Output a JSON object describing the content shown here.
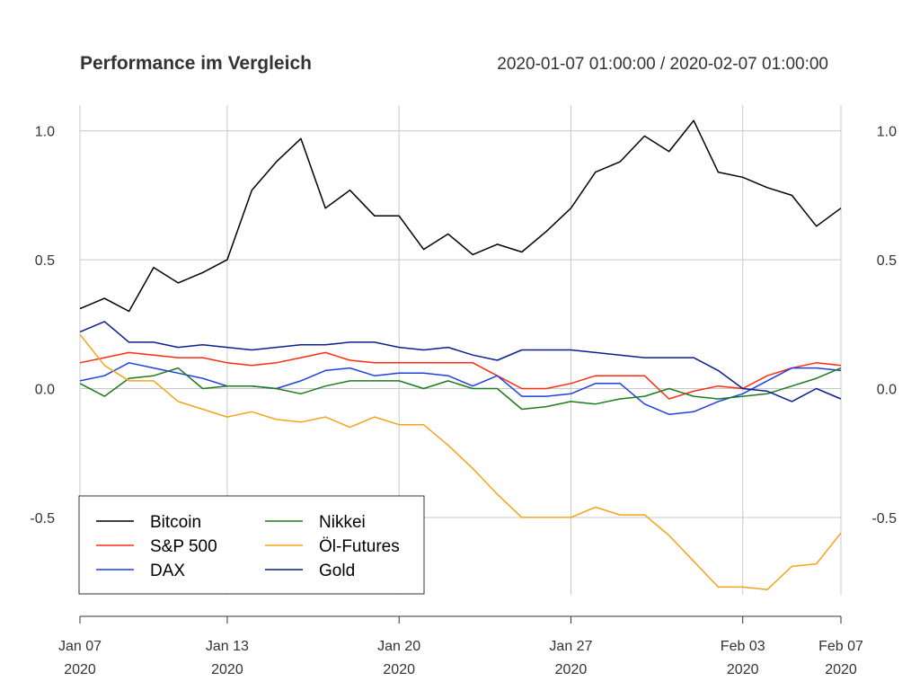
{
  "chart_data": {
    "type": "line",
    "title": "Performance im Vergleich",
    "subtitle": "2020-01-07 01:00:00 / 2020-02-07 01:00:00",
    "x": [
      "2020-01-07",
      "2020-01-08",
      "2020-01-09",
      "2020-01-10",
      "2020-01-11",
      "2020-01-12",
      "2020-01-13",
      "2020-01-14",
      "2020-01-15",
      "2020-01-16",
      "2020-01-17",
      "2020-01-18",
      "2020-01-19",
      "2020-01-20",
      "2020-01-21",
      "2020-01-22",
      "2020-01-23",
      "2020-01-24",
      "2020-01-25",
      "2020-01-26",
      "2020-01-27",
      "2020-01-28",
      "2020-01-29",
      "2020-01-30",
      "2020-01-31",
      "2020-02-01",
      "2020-02-02",
      "2020-02-03",
      "2020-02-04",
      "2020-02-05",
      "2020-02-06",
      "2020-02-07"
    ],
    "x_tick_labels": [
      {
        "date": "2020-01-07",
        "line1": "Jan 07",
        "line2": "2020"
      },
      {
        "date": "2020-01-13",
        "line1": "Jan 13",
        "line2": "2020"
      },
      {
        "date": "2020-01-20",
        "line1": "Jan 20",
        "line2": "2020"
      },
      {
        "date": "2020-01-27",
        "line1": "Jan 27",
        "line2": "2020"
      },
      {
        "date": "2020-02-03",
        "line1": "Feb 03",
        "line2": "2020"
      },
      {
        "date": "2020-02-07",
        "line1": "Feb 07",
        "line2": "2020"
      }
    ],
    "ylim": [
      -0.8,
      1.1
    ],
    "y_ticks": [
      {
        "value": 1.0,
        "label": "1.0"
      },
      {
        "value": 0.5,
        "label": "0.5"
      },
      {
        "value": 0.0,
        "label": "0.0"
      },
      {
        "value": -0.5,
        "label": "-0.5"
      }
    ],
    "grid": true,
    "legend_placement": "bottom-left",
    "series": [
      {
        "name": "Bitcoin",
        "color": "#000000",
        "values": [
          0.31,
          0.35,
          0.3,
          0.47,
          0.41,
          0.45,
          0.5,
          0.77,
          0.88,
          0.97,
          0.7,
          0.77,
          0.67,
          0.67,
          0.54,
          0.6,
          0.52,
          0.56,
          0.53,
          0.61,
          0.7,
          0.84,
          0.88,
          0.98,
          0.92,
          1.04,
          0.84,
          0.82,
          0.78,
          0.75,
          0.63,
          0.7
        ]
      },
      {
        "name": "S&P 500",
        "color": "#ff2a10",
        "values": [
          0.1,
          0.12,
          0.14,
          0.13,
          0.12,
          0.12,
          0.1,
          0.09,
          0.1,
          0.12,
          0.14,
          0.11,
          0.1,
          0.1,
          0.1,
          0.1,
          0.1,
          0.05,
          0.0,
          0.0,
          0.02,
          0.05,
          0.05,
          0.05,
          -0.04,
          -0.01,
          0.01,
          0.0,
          0.05,
          0.08,
          0.1,
          0.09
        ]
      },
      {
        "name": "DAX",
        "color": "#1f3fe0",
        "values": [
          0.03,
          0.05,
          0.1,
          0.08,
          0.06,
          0.04,
          0.01,
          0.01,
          0.0,
          0.03,
          0.07,
          0.08,
          0.05,
          0.06,
          0.06,
          0.05,
          0.01,
          0.05,
          -0.03,
          -0.03,
          -0.02,
          0.02,
          0.02,
          -0.06,
          -0.1,
          -0.09,
          -0.05,
          -0.02,
          0.03,
          0.08,
          0.08,
          0.07
        ]
      },
      {
        "name": "Nikkei",
        "color": "#1e7a1e",
        "values": [
          0.02,
          -0.03,
          0.04,
          0.05,
          0.08,
          0.0,
          0.01,
          0.01,
          0.0,
          -0.02,
          0.01,
          0.03,
          0.03,
          0.03,
          0.0,
          0.03,
          0.0,
          0.0,
          -0.08,
          -0.07,
          -0.05,
          -0.06,
          -0.04,
          -0.03,
          0.0,
          -0.03,
          -0.04,
          -0.03,
          -0.02,
          0.01,
          0.04,
          0.08
        ]
      },
      {
        "name": "Öl-Futures",
        "color": "#f5a31a",
        "values": [
          0.21,
          0.09,
          0.03,
          0.03,
          -0.05,
          -0.08,
          -0.11,
          -0.09,
          -0.12,
          -0.13,
          -0.11,
          -0.15,
          -0.11,
          -0.14,
          -0.14,
          -0.22,
          -0.31,
          -0.41,
          -0.5,
          -0.5,
          -0.5,
          -0.46,
          -0.49,
          -0.49,
          -0.57,
          -0.67,
          -0.77,
          -0.77,
          -0.78,
          -0.69,
          -0.68,
          -0.56
        ]
      },
      {
        "name": "Gold",
        "color": "#0c1e8c",
        "values": [
          0.22,
          0.26,
          0.18,
          0.18,
          0.16,
          0.17,
          0.16,
          0.15,
          0.16,
          0.17,
          0.17,
          0.18,
          0.18,
          0.16,
          0.15,
          0.16,
          0.13,
          0.11,
          0.15,
          0.15,
          0.15,
          0.14,
          0.13,
          0.12,
          0.12,
          0.12,
          0.07,
          0.0,
          -0.01,
          -0.05,
          0.0,
          -0.04
        ]
      }
    ]
  }
}
